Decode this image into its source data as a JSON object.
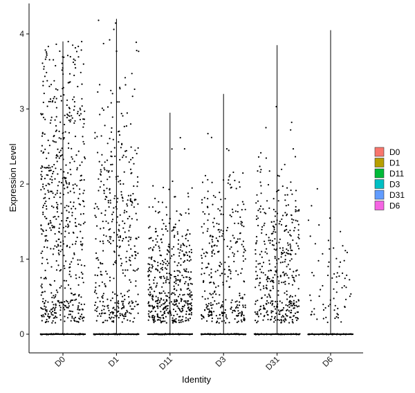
{
  "chart_data": {
    "type": "scatter",
    "subtype": "violin-jitter",
    "title": "",
    "xlabel": "Identity",
    "ylabel": "Expression Level",
    "ylim": [
      -0.2,
      4.3
    ],
    "yticks": [
      0,
      1,
      2,
      3,
      4
    ],
    "grid": false,
    "legend_position": "right",
    "categories": [
      "D0",
      "D1",
      "D11",
      "D3",
      "D31",
      "D6"
    ],
    "series": [
      {
        "name": "D0",
        "color": "#F8766D",
        "max": 3.9,
        "zero_fraction": "most",
        "n_points": 620,
        "median_nonzero": 1.8
      },
      {
        "name": "D1",
        "color": "#B79F00",
        "max": 4.2,
        "zero_fraction": "most",
        "n_points": 420,
        "median_nonzero": 1.6
      },
      {
        "name": "D11",
        "color": "#00BA38",
        "max": 2.95,
        "zero_fraction": "most",
        "n_points": 480,
        "median_nonzero": 0.7
      },
      {
        "name": "D3",
        "color": "#00BFC4",
        "max": 3.2,
        "zero_fraction": "most",
        "n_points": 330,
        "median_nonzero": 1.0
      },
      {
        "name": "D31",
        "color": "#619CFF",
        "max": 3.85,
        "zero_fraction": "most",
        "n_points": 420,
        "median_nonzero": 0.9
      },
      {
        "name": "D6",
        "color": "#F564E3",
        "max": 4.05,
        "zero_fraction": "most",
        "n_points": 75,
        "median_nonzero": 0.6
      }
    ]
  }
}
